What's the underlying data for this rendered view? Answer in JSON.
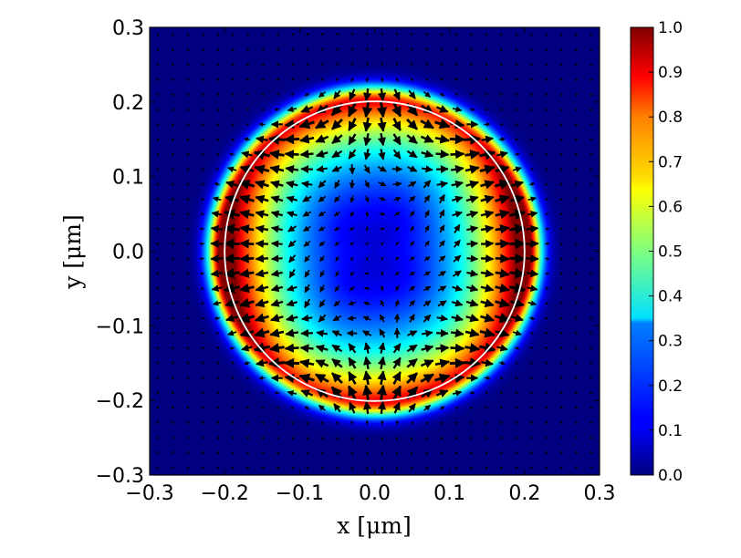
{
  "chart_data": {
    "type": "heatmap",
    "title": "",
    "xlabel": "x [μm]",
    "ylabel": "y [μm]",
    "xlim": [
      -0.3,
      0.3
    ],
    "ylim": [
      -0.3,
      0.3
    ],
    "xticks": [
      -0.3,
      -0.2,
      -0.1,
      0.0,
      0.1,
      0.2,
      0.3
    ],
    "yticks": [
      -0.3,
      -0.2,
      -0.1,
      0.0,
      0.1,
      0.2,
      0.3
    ],
    "colormap": "jet",
    "colorbar": {
      "range": [
        0.0,
        1.0
      ],
      "ticks": [
        0.0,
        0.1,
        0.2,
        0.3,
        0.4,
        0.5,
        0.6,
        0.7,
        0.8,
        0.9,
        1.0
      ]
    },
    "circle_overlay": {
      "center": [
        0.0,
        0.0
      ],
      "radius": 0.2,
      "color": "#ffffff"
    },
    "field_description": "Ring-shaped intensity peaking near r ≈ 0.19 μm (max 1.0 at left/right and top-left/bottom-right lobes), minimum near center (~0.1) and background outside (~0.0).",
    "quiver": {
      "grid_step": 0.02,
      "color": "#000000"
    }
  }
}
